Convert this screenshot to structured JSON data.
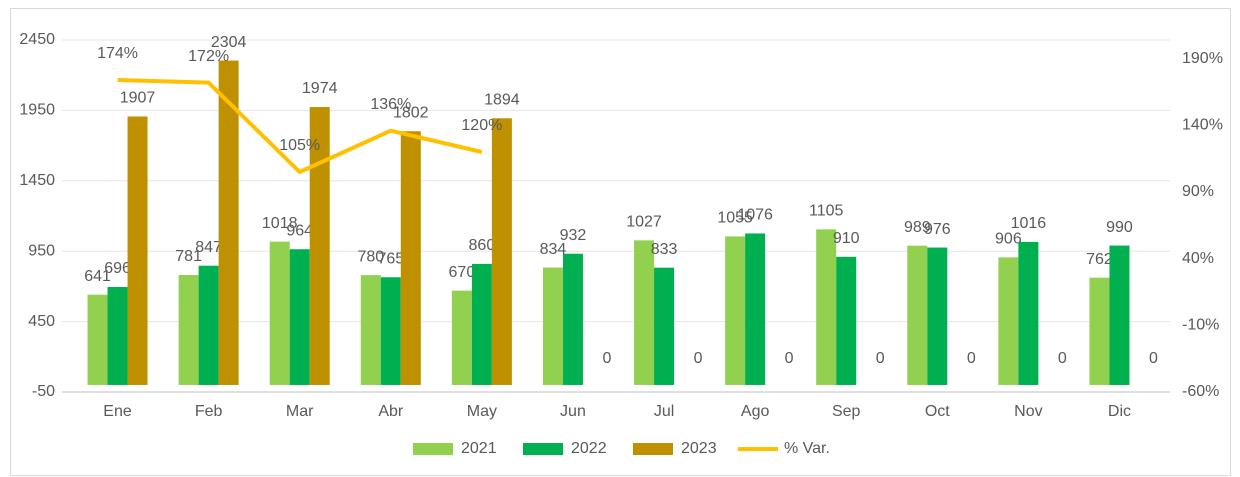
{
  "chart_data": {
    "type": "bar",
    "categories": [
      "Ene",
      "Feb",
      "Mar",
      "Abr",
      "May",
      "Jun",
      "Jul",
      "Ago",
      "Sep",
      "Oct",
      "Nov",
      "Dic"
    ],
    "series": [
      {
        "name": "2021",
        "color": "#92d050",
        "values": [
          641,
          781,
          1018,
          780,
          670,
          834,
          1027,
          1055,
          1105,
          989,
          906,
          762
        ]
      },
      {
        "name": "2022",
        "color": "#00b050",
        "values": [
          696,
          847,
          964,
          765,
          860,
          932,
          833,
          1076,
          910,
          976,
          1016,
          990
        ]
      },
      {
        "name": "2023",
        "color": "#bf9000",
        "values": [
          1907,
          2304,
          1974,
          1802,
          1894,
          0,
          0,
          0,
          0,
          0,
          0,
          0
        ]
      },
      {
        "name": "% Var.",
        "color": "#ffc000",
        "type": "line",
        "axis": "y2",
        "values": [
          174,
          172,
          105,
          136,
          120,
          null,
          null,
          null,
          null,
          null,
          null,
          null
        ],
        "value_labels": [
          "174%",
          "172%",
          "105%",
          "136%",
          "120%",
          null,
          null,
          null,
          null,
          null,
          null,
          null
        ]
      }
    ],
    "ylim": [
      -50,
      2450
    ],
    "yticks": [
      -50,
      450,
      950,
      1450,
      1950,
      2450
    ],
    "y2lim": [
      -60,
      204
    ],
    "y2ticks": [
      {
        "value": -60,
        "label": "-60%"
      },
      {
        "value": -10,
        "label": "-10%"
      },
      {
        "value": 40,
        "label": "40%"
      },
      {
        "value": 90,
        "label": "90%"
      },
      {
        "value": 140,
        "label": "140%"
      },
      {
        "value": 190,
        "label": "190%"
      }
    ],
    "grid": true,
    "legend": "bottom"
  }
}
